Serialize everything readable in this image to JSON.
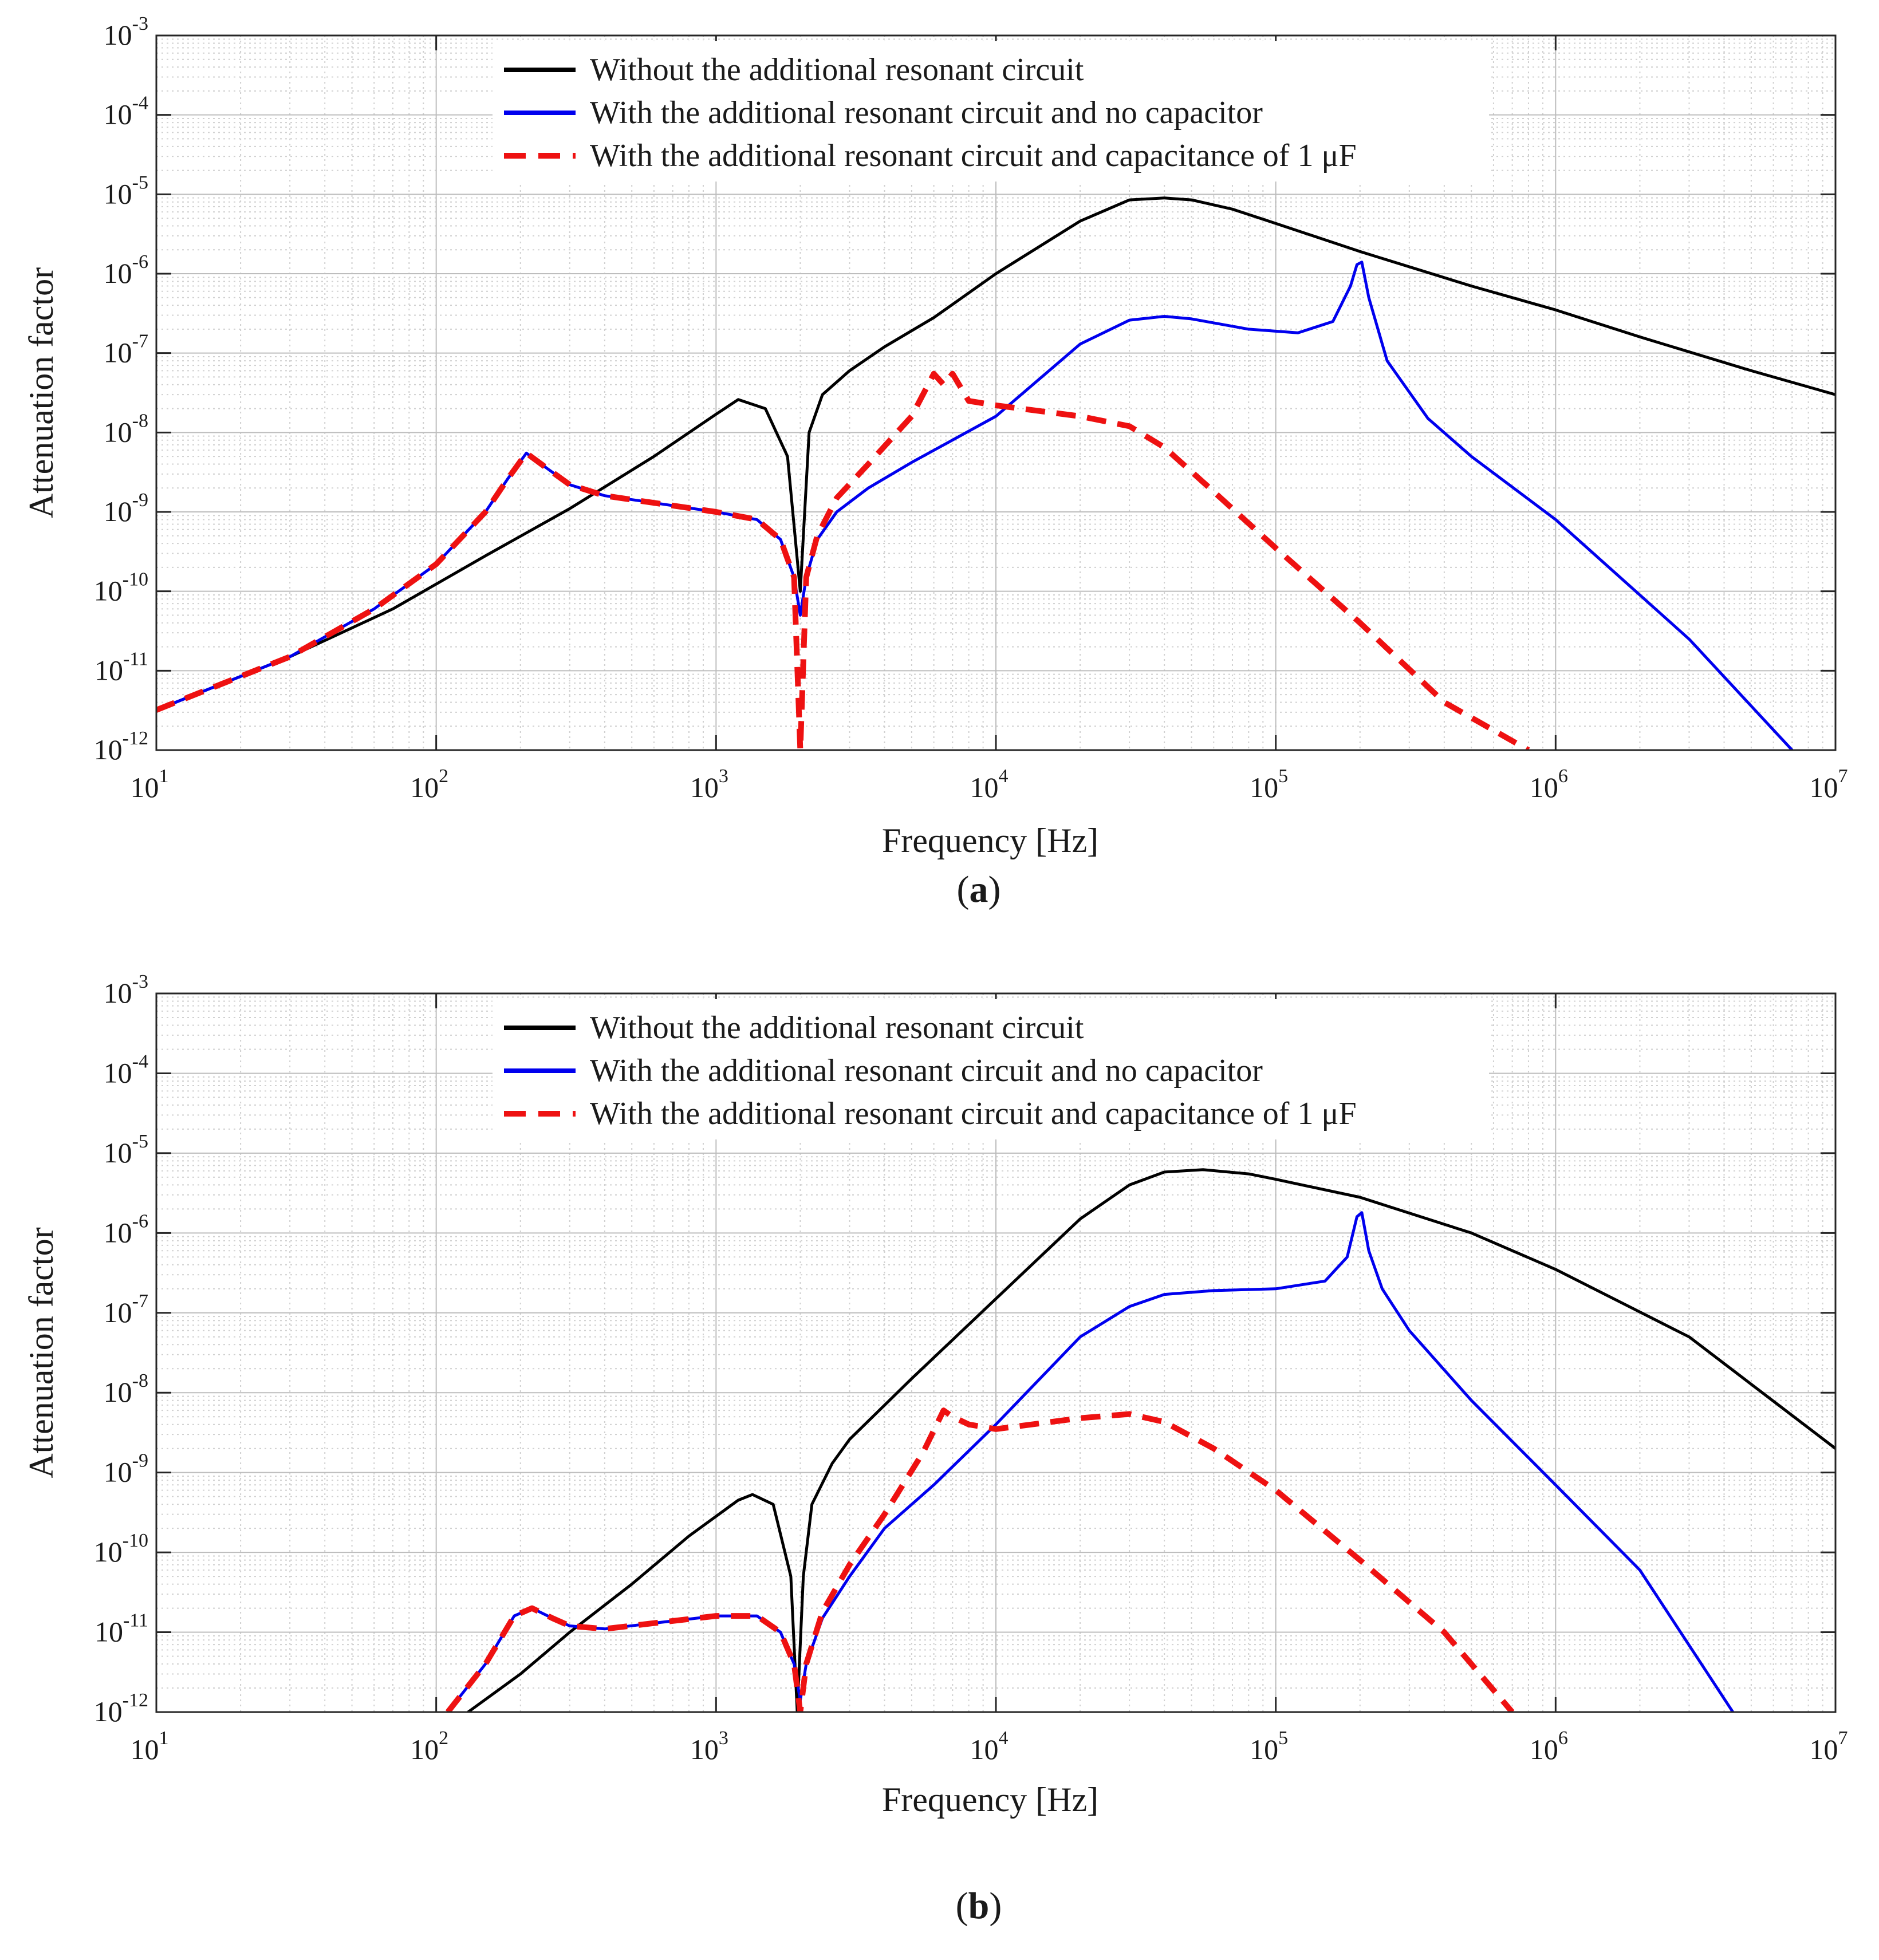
{
  "chart_data": [
    {
      "type": "line",
      "panel_label": "a",
      "xscale": "log",
      "yscale": "log",
      "xlim": [
        10,
        10000000
      ],
      "ylim": [
        1e-12,
        0.001
      ],
      "xlabel": "Frequency [Hz]",
      "ylabel": "Attenuation factor",
      "x_ticks": [
        {
          "base": "10",
          "exp": "1"
        },
        {
          "base": "10",
          "exp": "2"
        },
        {
          "base": "10",
          "exp": "3"
        },
        {
          "base": "10",
          "exp": "4"
        },
        {
          "base": "10",
          "exp": "5"
        },
        {
          "base": "10",
          "exp": "6"
        },
        {
          "base": "10",
          "exp": "7"
        }
      ],
      "y_ticks": [
        {
          "base": "10",
          "exp": "-12"
        },
        {
          "base": "10",
          "exp": "-11"
        },
        {
          "base": "10",
          "exp": "-10"
        },
        {
          "base": "10",
          "exp": "-9"
        },
        {
          "base": "10",
          "exp": "-8"
        },
        {
          "base": "10",
          "exp": "-7"
        },
        {
          "base": "10",
          "exp": "-6"
        },
        {
          "base": "10",
          "exp": "-5"
        },
        {
          "base": "10",
          "exp": "-4"
        },
        {
          "base": "10",
          "exp": "-3"
        }
      ],
      "grid": true,
      "legend_position": "top-center",
      "series": [
        {
          "name": "Without the additional resonant circuit",
          "color": "#000000",
          "style": "solid",
          "points": [
            [
              10,
              3.2e-12
            ],
            [
              30,
              1.5e-11
            ],
            [
              70,
              6e-11
            ],
            [
              150,
              2.8e-10
            ],
            [
              300,
              1.1e-09
            ],
            [
              600,
              5e-09
            ],
            [
              1000,
              1.7e-08
            ],
            [
              1200,
              2.6e-08
            ],
            [
              1500,
              2e-08
            ],
            [
              1800,
              5e-09
            ],
            [
              2000,
              1e-10
            ],
            [
              2150,
              1e-08
            ],
            [
              2400,
              3e-08
            ],
            [
              3000,
              6e-08
            ],
            [
              4000,
              1.2e-07
            ],
            [
              6000,
              2.8e-07
            ],
            [
              10000,
              1e-06
            ],
            [
              20000,
              4.6e-06
            ],
            [
              30000,
              8.5e-06
            ],
            [
              40000,
              9e-06
            ],
            [
              50000,
              8.5e-06
            ],
            [
              70000,
              6.5e-06
            ],
            [
              100000,
              4.3e-06
            ],
            [
              200000,
              1.9e-06
            ],
            [
              500000,
              7e-07
            ],
            [
              1000000,
              3.5e-07
            ],
            [
              2000000,
              1.6e-07
            ],
            [
              5000000,
              6e-08
            ],
            [
              10000000,
              3e-08
            ]
          ]
        },
        {
          "name": "With the additional resonant circuit and no capacitor",
          "color": "#0000ee",
          "style": "solid",
          "points": [
            [
              10,
              3.2e-12
            ],
            [
              30,
              1.5e-11
            ],
            [
              60,
              6e-11
            ],
            [
              100,
              2.2e-10
            ],
            [
              150,
              1e-09
            ],
            [
              180,
              2.6e-09
            ],
            [
              210,
              5.5e-09
            ],
            [
              250,
              3.5e-09
            ],
            [
              300,
              2.2e-09
            ],
            [
              400,
              1.6e-09
            ],
            [
              600,
              1.3e-09
            ],
            [
              1000,
              1e-09
            ],
            [
              1400,
              8e-10
            ],
            [
              1700,
              4.5e-10
            ],
            [
              1900,
              1.5e-10
            ],
            [
              2000,
              5e-11
            ],
            [
              2100,
              1.5e-10
            ],
            [
              2300,
              4.5e-10
            ],
            [
              2700,
              1e-09
            ],
            [
              3500,
              2e-09
            ],
            [
              5000,
              4.2e-09
            ],
            [
              10000,
              1.6e-08
            ],
            [
              20000,
              1.3e-07
            ],
            [
              30000,
              2.6e-07
            ],
            [
              40000,
              2.9e-07
            ],
            [
              50000,
              2.7e-07
            ],
            [
              80000,
              2e-07
            ],
            [
              120000,
              1.8e-07
            ],
            [
              160000,
              2.5e-07
            ],
            [
              185000,
              7e-07
            ],
            [
              195000,
              1.3e-06
            ],
            [
              203000,
              1.4e-06
            ],
            [
              215000,
              5e-07
            ],
            [
              250000,
              8e-08
            ],
            [
              350000,
              1.5e-08
            ],
            [
              500000,
              5e-09
            ],
            [
              1000000,
              8e-10
            ],
            [
              3000000,
              2.5e-11
            ],
            [
              7000000,
              1e-12
            ]
          ]
        },
        {
          "name": "With the additional resonant circuit and capacitance of 1 μF",
          "color": "#ee1111",
          "style": "dashed",
          "points": [
            [
              10,
              3.2e-12
            ],
            [
              30,
              1.5e-11
            ],
            [
              60,
              6e-11
            ],
            [
              100,
              2.2e-10
            ],
            [
              150,
              1e-09
            ],
            [
              180,
              2.6e-09
            ],
            [
              210,
              5.5e-09
            ],
            [
              250,
              3.5e-09
            ],
            [
              300,
              2.2e-09
            ],
            [
              400,
              1.6e-09
            ],
            [
              600,
              1.3e-09
            ],
            [
              1000,
              1e-09
            ],
            [
              1400,
              8e-10
            ],
            [
              1700,
              4.5e-10
            ],
            [
              1900,
              1.5e-10
            ],
            [
              2000,
              1e-12
            ],
            [
              2100,
              1.5e-10
            ],
            [
              2300,
              5e-10
            ],
            [
              2700,
              1.5e-09
            ],
            [
              3500,
              4e-09
            ],
            [
              5000,
              1.6e-08
            ],
            [
              6000,
              5.5e-08
            ],
            [
              6500,
              4e-08
            ],
            [
              7000,
              5.5e-08
            ],
            [
              8000,
              2.5e-08
            ],
            [
              10000,
              2.2e-08
            ],
            [
              20000,
              1.6e-08
            ],
            [
              30000,
              1.2e-08
            ],
            [
              40000,
              6.5e-09
            ],
            [
              60000,
              1.8e-09
            ],
            [
              100000,
              3.5e-10
            ],
            [
              200000,
              4e-11
            ],
            [
              400000,
              4e-12
            ],
            [
              800000,
              1e-12
            ]
          ]
        }
      ]
    },
    {
      "type": "line",
      "panel_label": "b",
      "xscale": "log",
      "yscale": "log",
      "xlim": [
        10,
        10000000
      ],
      "ylim": [
        1e-12,
        0.001
      ],
      "xlabel": "Frequency [Hz]",
      "ylabel": "Attenuation factor",
      "x_ticks": [
        {
          "base": "10",
          "exp": "1"
        },
        {
          "base": "10",
          "exp": "2"
        },
        {
          "base": "10",
          "exp": "3"
        },
        {
          "base": "10",
          "exp": "4"
        },
        {
          "base": "10",
          "exp": "5"
        },
        {
          "base": "10",
          "exp": "6"
        },
        {
          "base": "10",
          "exp": "7"
        }
      ],
      "y_ticks": [
        {
          "base": "10",
          "exp": "-12"
        },
        {
          "base": "10",
          "exp": "-11"
        },
        {
          "base": "10",
          "exp": "-10"
        },
        {
          "base": "10",
          "exp": "-9"
        },
        {
          "base": "10",
          "exp": "-8"
        },
        {
          "base": "10",
          "exp": "-7"
        },
        {
          "base": "10",
          "exp": "-6"
        },
        {
          "base": "10",
          "exp": "-5"
        },
        {
          "base": "10",
          "exp": "-4"
        },
        {
          "base": "10",
          "exp": "-3"
        }
      ],
      "grid": true,
      "legend_position": "top-center",
      "series": [
        {
          "name": "Without the additional resonant circuit",
          "color": "#000000",
          "style": "solid",
          "points": [
            [
              130,
              1e-12
            ],
            [
              200,
              3e-12
            ],
            [
              300,
              1e-11
            ],
            [
              500,
              4e-11
            ],
            [
              800,
              1.6e-10
            ],
            [
              1200,
              4.5e-10
            ],
            [
              1350,
              5.3e-10
            ],
            [
              1600,
              4e-10
            ],
            [
              1850,
              5e-11
            ],
            [
              1950,
              1e-12
            ],
            [
              2050,
              5e-11
            ],
            [
              2200,
              4e-10
            ],
            [
              2600,
              1.3e-09
            ],
            [
              3000,
              2.6e-09
            ],
            [
              5000,
              1.5e-08
            ],
            [
              10000,
              1.5e-07
            ],
            [
              20000,
              1.5e-06
            ],
            [
              30000,
              4e-06
            ],
            [
              40000,
              5.8e-06
            ],
            [
              55000,
              6.2e-06
            ],
            [
              80000,
              5.5e-06
            ],
            [
              100000,
              4.7e-06
            ],
            [
              200000,
              2.8e-06
            ],
            [
              500000,
              1e-06
            ],
            [
              1000000,
              3.5e-07
            ],
            [
              3000000,
              5e-08
            ],
            [
              10000000,
              2e-09
            ]
          ]
        },
        {
          "name": "With the additional resonant circuit and no capacitor",
          "color": "#0000ee",
          "style": "solid",
          "points": [
            [
              110,
              1e-12
            ],
            [
              150,
              4e-12
            ],
            [
              190,
              1.6e-11
            ],
            [
              220,
              2e-11
            ],
            [
              260,
              1.5e-11
            ],
            [
              300,
              1.2e-11
            ],
            [
              400,
              1.1e-11
            ],
            [
              600,
              1.3e-11
            ],
            [
              1000,
              1.6e-11
            ],
            [
              1400,
              1.6e-11
            ],
            [
              1700,
              1e-11
            ],
            [
              1900,
              4e-12
            ],
            [
              2000,
              1.4e-12
            ],
            [
              2100,
              4e-12
            ],
            [
              2400,
              1.5e-11
            ],
            [
              3000,
              5e-11
            ],
            [
              4000,
              2e-10
            ],
            [
              6000,
              7e-10
            ],
            [
              10000,
              4e-09
            ],
            [
              20000,
              5e-08
            ],
            [
              30000,
              1.2e-07
            ],
            [
              40000,
              1.7e-07
            ],
            [
              60000,
              1.9e-07
            ],
            [
              100000,
              2e-07
            ],
            [
              150000,
              2.5e-07
            ],
            [
              180000,
              5e-07
            ],
            [
              195000,
              1.6e-06
            ],
            [
              203000,
              1.8e-06
            ],
            [
              215000,
              6e-07
            ],
            [
              240000,
              2e-07
            ],
            [
              300000,
              6e-08
            ],
            [
              500000,
              8e-09
            ],
            [
              1000000,
              7e-10
            ],
            [
              2000000,
              6e-11
            ],
            [
              4300000,
              1e-12
            ]
          ]
        },
        {
          "name": "With the additional resonant circuit and capacitance of 1 μF",
          "color": "#ee1111",
          "style": "dashed",
          "points": [
            [
              110,
              1e-12
            ],
            [
              150,
              4e-12
            ],
            [
              190,
              1.6e-11
            ],
            [
              220,
              2e-11
            ],
            [
              260,
              1.5e-11
            ],
            [
              300,
              1.2e-11
            ],
            [
              400,
              1.1e-11
            ],
            [
              600,
              1.3e-11
            ],
            [
              1000,
              1.6e-11
            ],
            [
              1400,
              1.6e-11
            ],
            [
              1700,
              1e-11
            ],
            [
              1900,
              4e-12
            ],
            [
              2000,
              1e-12
            ],
            [
              2100,
              4e-12
            ],
            [
              2400,
              1.8e-11
            ],
            [
              3000,
              7e-11
            ],
            [
              4000,
              3e-10
            ],
            [
              5500,
              1.8e-09
            ],
            [
              6500,
              6e-09
            ],
            [
              7000,
              5e-09
            ],
            [
              8000,
              4e-09
            ],
            [
              10000,
              3.5e-09
            ],
            [
              20000,
              4.8e-09
            ],
            [
              30000,
              5.4e-09
            ],
            [
              40000,
              4.3e-09
            ],
            [
              60000,
              2e-09
            ],
            [
              100000,
              6e-10
            ],
            [
              200000,
              8e-11
            ],
            [
              400000,
              1e-11
            ],
            [
              700000,
              1e-12
            ]
          ]
        }
      ]
    }
  ],
  "legend": {
    "entries": [
      "Without the additional resonant circuit",
      "With the additional resonant circuit and no capacitor",
      "With the additional resonant circuit and capacitance of 1 μF"
    ]
  }
}
